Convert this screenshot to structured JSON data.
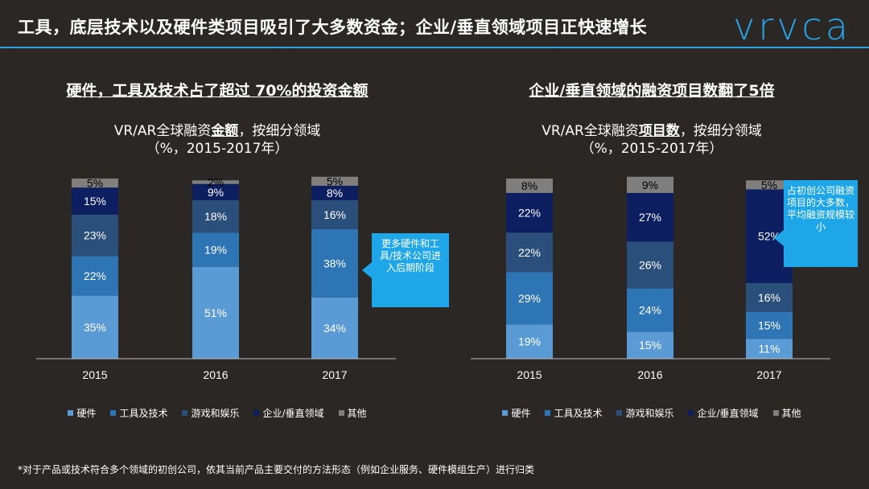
{
  "title": "工具，底层技术以及硬件类项目吸引了大多数资金；企业/垂直领域项目正快速增长",
  "logo_text": "vrvca",
  "footnote": "*对于产品或技术符合多个领域的初创公司，依其当前产品主要交付的方法形态（例如企业服务、硬件模组生产）进行归类",
  "colors": {
    "硬件": "#5b9bd5",
    "工具及技术": "#2e75b6",
    "游戏和娱乐": "#2a4f7a",
    "企业/垂直领域": "#0d1f60",
    "其他": "#7f7f7f",
    "accent": "#29a3e6"
  },
  "chart_data": [
    {
      "type": "bar",
      "stacked": true,
      "heading": "硬件，工具及技术占了超过 70%的投资金额",
      "title_pre": "VR/AR全球融资",
      "title_em": "金额",
      "title_post": "，按细分领域",
      "subtitle": "（%，2015-2017年）",
      "categories": [
        "2015",
        "2016",
        "2017"
      ],
      "series": [
        {
          "name": "硬件",
          "values": [
            35,
            51,
            34
          ]
        },
        {
          "name": "工具及技术",
          "values": [
            22,
            19,
            38
          ]
        },
        {
          "name": "游戏和娱乐",
          "values": [
            23,
            18,
            16
          ]
        },
        {
          "name": "企业/垂直领域",
          "values": [
            15,
            9,
            8
          ]
        },
        {
          "name": "其他",
          "values": [
            5,
            2,
            5
          ]
        }
      ],
      "ylim": [
        0,
        100
      ],
      "legend_position": "bottom",
      "callout": "更多硬件和工具/技术公司进入后期阶段"
    },
    {
      "type": "bar",
      "stacked": true,
      "heading": "企业/垂直领域的融资项目数翻了5倍",
      "title_pre": "VR/AR全球融资",
      "title_em": "项目数",
      "title_post": "，按细分领域",
      "subtitle": "（%，2015-2017年）",
      "categories": [
        "2015",
        "2016",
        "2017"
      ],
      "series": [
        {
          "name": "硬件",
          "values": [
            19,
            15,
            11
          ]
        },
        {
          "name": "工具及技术",
          "values": [
            29,
            24,
            15
          ]
        },
        {
          "name": "游戏和娱乐",
          "values": [
            22,
            26,
            16
          ]
        },
        {
          "name": "企业/垂直领域",
          "values": [
            22,
            27,
            52
          ]
        },
        {
          "name": "其他",
          "values": [
            8,
            9,
            5
          ]
        }
      ],
      "ylim": [
        0,
        100
      ],
      "legend_position": "bottom",
      "callout": "占初创公司融资项目的大多数，平均融资规模较小"
    }
  ]
}
